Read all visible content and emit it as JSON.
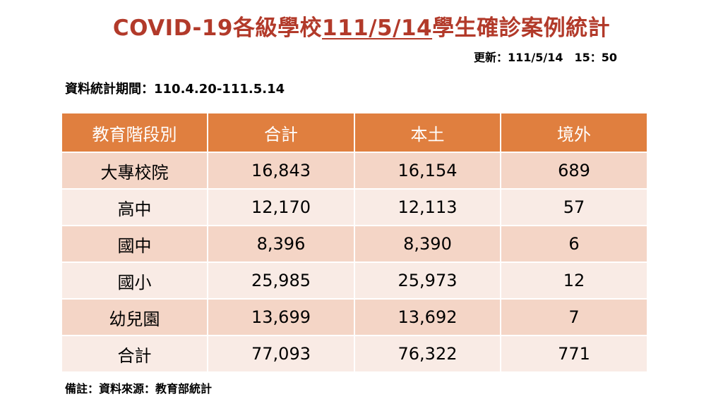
{
  "title": {
    "prefix": "COVID-19各級學校",
    "date": "111/5/14",
    "suffix": "學生確診案例統計"
  },
  "updated": "更新：111/5/14　15：50",
  "period": "資料統計期間：110.4.20-111.5.14",
  "table": {
    "headers": [
      "教育階段別",
      "合計",
      "本土",
      "境外"
    ],
    "rows": [
      [
        "大專校院",
        "16,843",
        "16,154",
        "689"
      ],
      [
        "高中",
        "12,170",
        "12,113",
        "57"
      ],
      [
        "國中",
        "8,396",
        "8,390",
        "6"
      ],
      [
        "國小",
        "25,985",
        "25,973",
        "12"
      ],
      [
        "幼兒園",
        "13,699",
        "13,692",
        "7"
      ],
      [
        "合計",
        "77,093",
        "76,322",
        "771"
      ]
    ]
  },
  "note": "備註：資料來源：教育部統計",
  "colors": {
    "title": "#b23a2a",
    "header_bg": "#e07f3f",
    "row_odd_bg": "#f4d5c6",
    "row_even_bg": "#f9ebe5"
  }
}
